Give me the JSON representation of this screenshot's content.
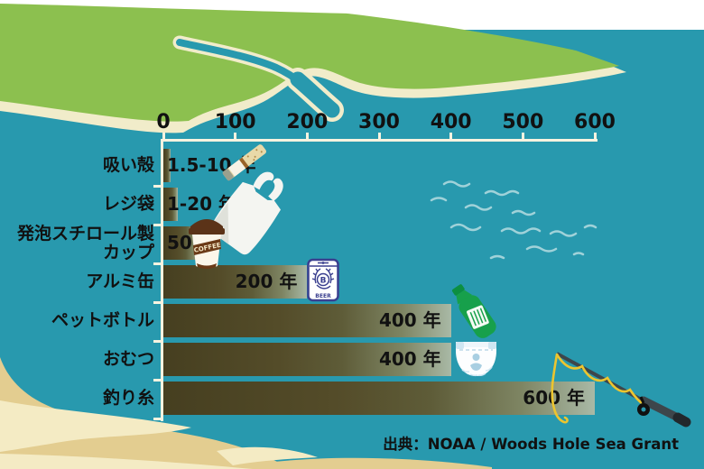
{
  "chart_data": {
    "type": "bar",
    "orientation": "horizontal",
    "title": "",
    "xlabel": "",
    "ylabel": "",
    "unit_suffix": "年",
    "axis": {
      "min": 0,
      "max": 600,
      "ticks": [
        0,
        100,
        200,
        300,
        400,
        500,
        600
      ]
    },
    "grid": false,
    "rows": [
      {
        "category": "吸い殻",
        "category_lines": [
          "吸い殻"
        ],
        "years_min": 1.5,
        "years_max": 10,
        "bar_years": 10,
        "value_label": "1.5-10 年",
        "value_label_inside": false,
        "icon": "cigarette-butt-icon"
      },
      {
        "category": "レジ袋",
        "category_lines": [
          "レジ袋"
        ],
        "years_min": 1,
        "years_max": 20,
        "bar_years": 20,
        "value_label": "1-20 年",
        "value_label_inside": false,
        "icon": "plastic-bag-icon"
      },
      {
        "category": "発泡スチロール製カップ",
        "category_lines": [
          "発泡スチロール製",
          "カップ"
        ],
        "years_min": 50,
        "years_max": 50,
        "bar_years": 50,
        "value_label": "50 年",
        "value_label_inside": false,
        "icon": "coffee-cup-icon"
      },
      {
        "category": "アルミ缶",
        "category_lines": [
          "アルミ缶"
        ],
        "years_min": 200,
        "years_max": 200,
        "bar_years": 200,
        "value_label": "200 年",
        "value_label_inside": true,
        "icon": "beer-can-icon"
      },
      {
        "category": "ペットボトル",
        "category_lines": [
          "ペットボトル"
        ],
        "years_min": 400,
        "years_max": 400,
        "bar_years": 400,
        "value_label": "400 年",
        "value_label_inside": true,
        "icon": "pet-bottle-icon"
      },
      {
        "category": "おむつ",
        "category_lines": [
          "おむつ"
        ],
        "years_min": 400,
        "years_max": 400,
        "bar_years": 400,
        "value_label": "400 年",
        "value_label_inside": true,
        "icon": "diaper-icon"
      },
      {
        "category": "釣り糸",
        "category_lines": [
          "釣り糸"
        ],
        "years_min": 600,
        "years_max": 600,
        "bar_years": 600,
        "value_label": "600 年",
        "value_label_inside": true,
        "icon": "fishing-rod-icon"
      }
    ]
  },
  "source": "出典：NOAA / Woods Hole Sea Grant",
  "icons": {
    "coffee_cup": {
      "label": "COFFEE"
    },
    "beer_can": {
      "letter": "B",
      "label": "BEER"
    }
  },
  "colors": {
    "sea": "#2899ae",
    "sky": "#ffffff",
    "land_green": "#8cc04f",
    "sand": "#f1ecca",
    "beach_tan": "#e3cd90",
    "foam_cream": "#f4ebc4",
    "bar_dark": "#463f20",
    "bar_light": "#a9b9a6",
    "axis_line": "#f8f3e0",
    "text": "#111111",
    "beer_can_navy": "#3a3f8f",
    "bottle_green": "#17a04b",
    "cup_brown": "#5b3318",
    "fishing_line_yellow": "#ecc52f"
  }
}
